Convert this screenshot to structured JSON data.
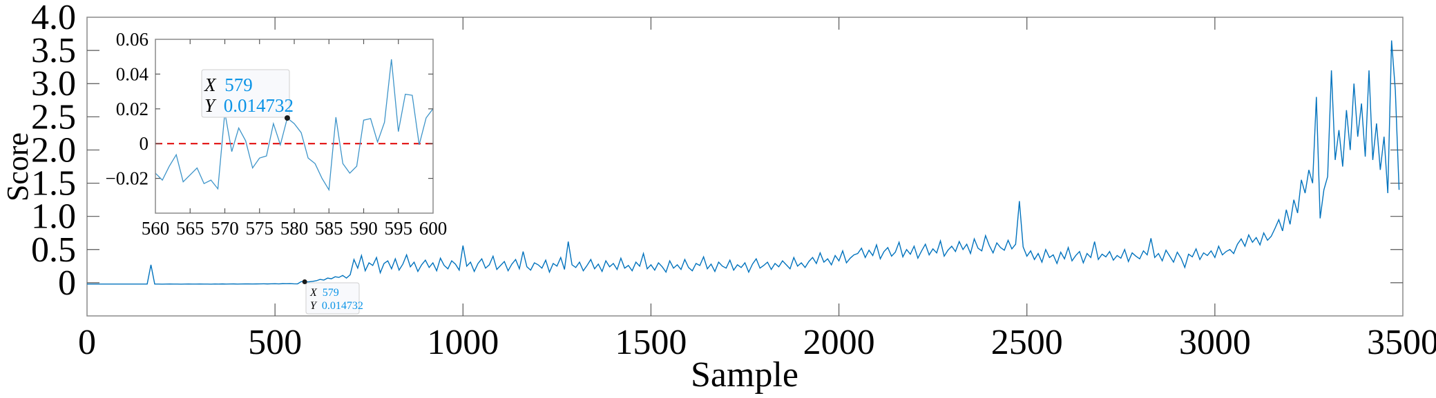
{
  "chart_data": [
    {
      "type": "line",
      "xlabel": "Sample",
      "ylabel": "Score",
      "xlim": [
        0,
        3500
      ],
      "ylim": [
        -0.5,
        4.0
      ],
      "xticks": [
        "0",
        "500",
        "1000",
        "1500",
        "2000",
        "2500",
        "3000",
        "3500"
      ],
      "yticks": [
        "0",
        "0.5",
        "1.0",
        "1.5",
        "2.0",
        "2.5",
        "3.0",
        "3.5",
        "4.0"
      ],
      "grid": false,
      "line_color": "#0072BD",
      "series": [
        {
          "x_start": 0,
          "x_step": 10,
          "values": [
            -0.02,
            -0.02,
            -0.02,
            -0.02,
            -0.02,
            -0.02,
            -0.02,
            -0.02,
            -0.02,
            -0.02,
            -0.02,
            -0.02,
            -0.02,
            -0.02,
            -0.02,
            -0.02,
            -0.02,
            0.27,
            -0.02,
            -0.02,
            -0.021,
            -0.02,
            -0.019,
            -0.02,
            -0.02,
            -0.021,
            -0.02,
            -0.019,
            -0.02,
            -0.02,
            -0.019,
            -0.02,
            -0.02,
            -0.021,
            -0.019,
            -0.02,
            -0.018,
            -0.02,
            -0.019,
            -0.018,
            -0.02,
            -0.019,
            -0.018,
            -0.017,
            -0.019,
            -0.018,
            -0.017,
            -0.016,
            -0.018,
            -0.016,
            -0.015,
            -0.017,
            -0.014,
            -0.015,
            -0.013,
            -0.016,
            -0.017,
            0.018,
            0.012,
            0.014,
            0.02,
            0.03,
            0.05,
            0.04,
            0.07,
            0.06,
            0.09,
            0.08,
            0.11,
            0.07,
            0.12,
            0.35,
            0.22,
            0.41,
            0.18,
            0.3,
            0.26,
            0.38,
            0.15,
            0.29,
            0.33,
            0.21,
            0.36,
            0.19,
            0.28,
            0.42,
            0.24,
            0.31,
            0.17,
            0.27,
            0.34,
            0.23,
            0.3,
            0.18,
            0.37,
            0.26,
            0.21,
            0.33,
            0.28,
            0.19,
            0.56,
            0.25,
            0.31,
            0.17,
            0.29,
            0.36,
            0.22,
            0.27,
            0.4,
            0.2,
            0.26,
            0.32,
            0.18,
            0.28,
            0.35,
            0.21,
            0.47,
            0.24,
            0.19,
            0.3,
            0.27,
            0.22,
            0.34,
            0.16,
            0.29,
            0.25,
            0.38,
            0.2,
            0.62,
            0.27,
            0.23,
            0.31,
            0.18,
            0.26,
            0.35,
            0.21,
            0.28,
            0.17,
            0.33,
            0.24,
            0.29,
            0.2,
            0.37,
            0.22,
            0.26,
            0.18,
            0.31,
            0.25,
            0.44,
            0.21,
            0.27,
            0.19,
            0.3,
            0.24,
            0.16,
            0.33,
            0.22,
            0.27,
            0.2,
            0.35,
            0.23,
            0.18,
            0.29,
            0.26,
            0.39,
            0.21,
            0.28,
            0.17,
            0.31,
            0.25,
            0.22,
            0.34,
            0.19,
            0.27,
            0.23,
            0.3,
            0.16,
            0.28,
            0.36,
            0.22,
            0.26,
            0.31,
            0.2,
            0.29,
            0.24,
            0.33,
            0.27,
            0.21,
            0.38,
            0.25,
            0.3,
            0.23,
            0.32,
            0.38,
            0.29,
            0.45,
            0.31,
            0.36,
            0.27,
            0.41,
            0.33,
            0.48,
            0.3,
            0.37,
            0.42,
            0.44,
            0.52,
            0.38,
            0.49,
            0.41,
            0.57,
            0.36,
            0.47,
            0.53,
            0.4,
            0.46,
            0.61,
            0.39,
            0.5,
            0.43,
            0.55,
            0.37,
            0.48,
            0.58,
            0.42,
            0.51,
            0.45,
            0.63,
            0.4,
            0.49,
            0.55,
            0.47,
            0.62,
            0.5,
            0.58,
            0.44,
            0.66,
            0.52,
            0.48,
            0.71,
            0.56,
            0.45,
            0.6,
            0.53,
            0.49,
            0.64,
            0.51,
            0.58,
            1.23,
            0.54,
            0.4,
            0.48,
            0.35,
            0.44,
            0.31,
            0.5,
            0.38,
            0.42,
            0.29,
            0.46,
            0.36,
            0.53,
            0.33,
            0.41,
            0.47,
            0.3,
            0.44,
            0.38,
            0.62,
            0.35,
            0.43,
            0.39,
            0.47,
            0.34,
            0.41,
            0.37,
            0.5,
            0.32,
            0.45,
            0.4,
            0.36,
            0.48,
            0.42,
            0.67,
            0.38,
            0.44,
            0.33,
            0.49,
            0.4,
            0.31,
            0.46,
            0.37,
            0.23,
            0.43,
            0.39,
            0.51,
            0.35,
            0.45,
            0.41,
            0.48,
            0.38,
            0.55,
            0.42,
            0.47,
            0.5,
            0.44,
            0.58,
            0.66,
            0.55,
            0.72,
            0.61,
            0.68,
            0.57,
            0.75,
            0.64,
            0.7,
            0.82,
            0.95,
            0.78,
            1.1,
            0.88,
            1.25,
            1.05,
            1.55,
            1.35,
            1.7,
            1.5,
            2.8,
            0.97,
            1.4,
            1.6,
            3.2,
            1.85,
            2.3,
            1.75,
            2.6,
            2.0,
            3.0,
            2.2,
            2.7,
            1.9,
            3.2,
            1.85,
            2.4,
            1.7,
            2.2,
            1.35,
            3.65,
            2.9,
            1.4
          ]
        }
      ],
      "datatip": {
        "x_label": "X",
        "y_label": "Y",
        "x": 579,
        "y": 0.014732,
        "x_text": "579",
        "y_text": "0.014732"
      }
    },
    {
      "type": "line",
      "title": "",
      "xlim": [
        560,
        600
      ],
      "ylim": [
        -0.04,
        0.06
      ],
      "xticks": [
        "560",
        "565",
        "570",
        "575",
        "580",
        "585",
        "590",
        "595",
        "600"
      ],
      "yticks": [
        "−0.02",
        "0",
        "0.02",
        "0.04",
        "0.06"
      ],
      "grid": false,
      "line_color": "#3d94c9",
      "reference_line": {
        "y": 0,
        "color": "#e00000",
        "style": "dashed"
      },
      "series": [
        {
          "x_start": 560,
          "x_step": 1,
          "values": [
            -0.017,
            -0.021,
            -0.013,
            -0.0064,
            -0.022,
            -0.018,
            -0.014,
            -0.023,
            -0.021,
            -0.026,
            0.018,
            -0.0046,
            0.009,
            0.0016,
            -0.014,
            -0.0083,
            -0.0071,
            0.0115,
            -0.0007,
            0.014732,
            0.0115,
            0.0063,
            -0.0083,
            -0.0115,
            -0.02,
            -0.0266,
            0.0152,
            -0.0115,
            -0.017,
            -0.013,
            0.0135,
            0.0144,
            0.0009,
            0.0123,
            0.0485,
            0.0069,
            0.0284,
            0.0278,
            -0.0007,
            0.0148,
            0.0201
          ]
        }
      ],
      "datatip": {
        "x_label": "X",
        "y_label": "Y",
        "x": 579,
        "y": 0.014732,
        "x_text": "579",
        "y_text": "0.014732"
      }
    }
  ]
}
